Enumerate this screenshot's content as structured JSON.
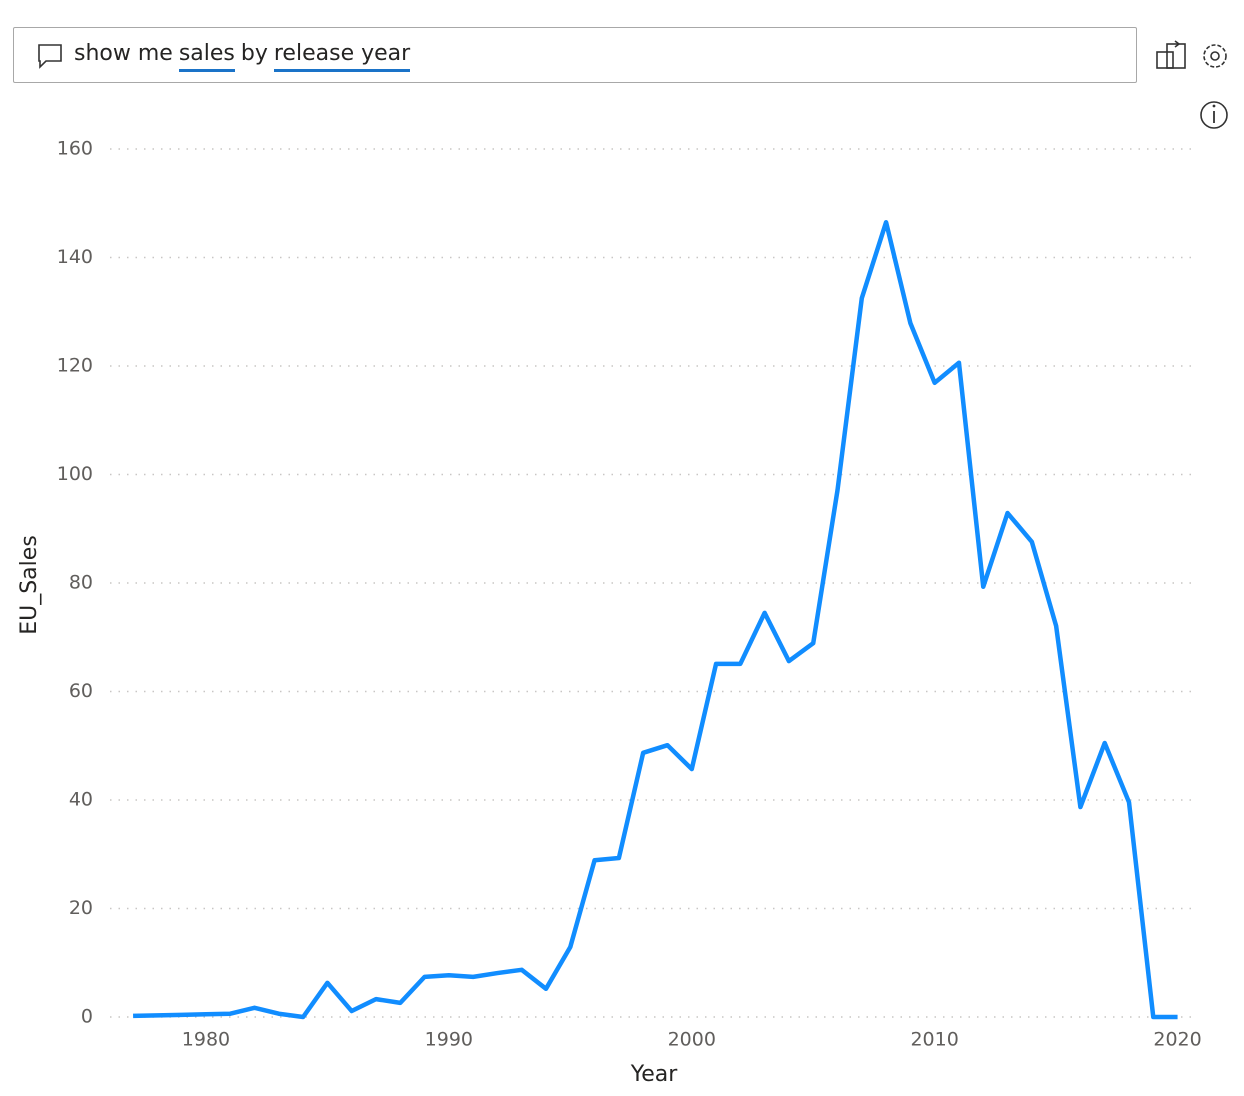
{
  "query": {
    "segments": [
      {
        "text": "show me",
        "underline": false
      },
      {
        "text": "sales",
        "underline": true
      },
      {
        "text": "by",
        "underline": false
      },
      {
        "text": "release year",
        "underline": true
      }
    ]
  },
  "chart_data": {
    "type": "line",
    "x_label": "Year",
    "y_label": "EU_Sales",
    "x": [
      1977,
      1978,
      1979,
      1980,
      1981,
      1982,
      1983,
      1984,
      1985,
      1986,
      1987,
      1988,
      1989,
      1990,
      1991,
      1992,
      1993,
      1994,
      1995,
      1996,
      1997,
      1998,
      1999,
      2000,
      2001,
      2002,
      2003,
      2004,
      2005,
      2006,
      2007,
      2008,
      2009,
      2010,
      2011,
      2012,
      2013,
      2014,
      2015,
      2016,
      2017,
      2018,
      2019,
      2020
    ],
    "values": [
      0.2,
      0.3,
      0.4,
      0.5,
      0.6,
      1.7,
      0.6,
      0,
      6.3,
      1.1,
      3.3,
      2.6,
      7.4,
      7.7,
      7.4,
      8.1,
      8.7,
      5.2,
      12.9,
      28.9,
      29.3,
      48.7,
      50.1,
      45.7,
      65.1,
      65.1,
      74.5,
      65.6,
      68.9,
      97.1,
      132.5,
      146.5,
      127.9,
      116.9,
      120.6,
      79.3,
      92.9,
      87.6,
      72.1,
      38.7,
      50.5,
      39.6,
      0,
      0
    ],
    "color": "#118DFF",
    "xlim": [
      1976.05,
      2020.8
    ],
    "xticks": [
      1980,
      1990,
      2000,
      2010,
      2020
    ],
    "ylim": [
      0,
      160
    ],
    "yticks": [
      0,
      20,
      40,
      60,
      80,
      100,
      120,
      140,
      160
    ],
    "grid": true
  }
}
